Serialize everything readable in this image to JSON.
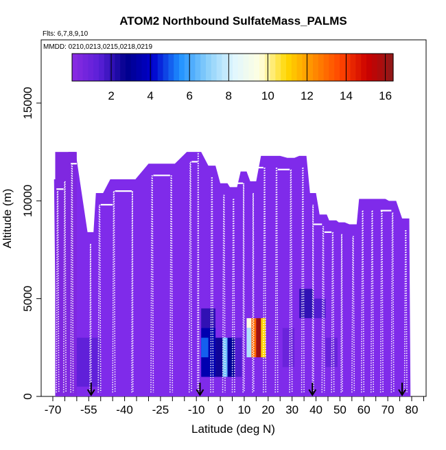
{
  "chart_data": {
    "type": "heatmap",
    "title": "ATOM2 Northbound SulfateMass_PALMS",
    "subtitle_flights": "Flts: 6,7,8,9,10",
    "subtitle_dates": "MMDD: 0210,0213,0215,0218,0219",
    "xlabel": "Latitude (deg N)",
    "ylabel": "Altitude (m)",
    "xlim": [
      -70,
      85
    ],
    "ylim": [
      0,
      17500
    ],
    "x_ticks": [
      -70,
      -55,
      -40,
      -25,
      -10,
      0,
      10,
      20,
      30,
      40,
      50,
      60,
      70,
      80
    ],
    "y_ticks": [
      0,
      5000,
      10000,
      15000
    ],
    "colorbar": {
      "min": 0,
      "max": 16.4,
      "ticks": [
        2,
        4,
        6,
        8,
        10,
        12,
        14,
        16
      ],
      "colors": [
        "#8a2be2",
        "#5a1fd8",
        "#00008b",
        "#0000cd",
        "#1e90ff",
        "#87cefa",
        "#e0f6ff",
        "#ffffe0",
        "#ffd700",
        "#ff8c00",
        "#ff4500",
        "#cc0000",
        "#8b1a1a"
      ]
    },
    "background_color": "#7f2bea",
    "profiles": [
      {
        "lat_start": -68.5,
        "lat_end": -67.5,
        "alt_top": 10500
      },
      {
        "lat_start": -65.5,
        "lat_end": -64.5,
        "alt_top": 11000
      },
      {
        "lat_start": -62.5,
        "lat_end": -61.5,
        "alt_top": 11900
      },
      {
        "lat_start": -54.5,
        "lat_end": -54.0,
        "alt_top": 7800
      },
      {
        "lat_start": -51.0,
        "lat_end": -50.0,
        "alt_top": 9800
      },
      {
        "lat_start": -45.0,
        "lat_end": -44.0,
        "alt_top": 10500
      },
      {
        "lat_start": -37.0,
        "lat_end": -36.5,
        "alt_top": 10500
      },
      {
        "lat_start": -29.0,
        "lat_end": -28.0,
        "alt_top": 11300
      },
      {
        "lat_start": -21.0,
        "lat_end": -20.0,
        "alt_top": 11300
      },
      {
        "lat_start": -13.0,
        "lat_end": -12.0,
        "alt_top": 12000
      },
      {
        "lat_start": -9.5,
        "lat_end": -9.0,
        "alt_top": 12800
      },
      {
        "lat_start": -4.0,
        "lat_end": -3.0,
        "alt_top": 11200
      },
      {
        "lat_start": 1.0,
        "lat_end": 2.0,
        "alt_top": 10300
      },
      {
        "lat_start": 5.0,
        "lat_end": 6.0,
        "alt_top": 10100
      },
      {
        "lat_start": 9.5,
        "lat_end": 10.0,
        "alt_top": 10900
      },
      {
        "lat_start": 13.5,
        "lat_end": 14.0,
        "alt_top": 10400
      },
      {
        "lat_start": 18.0,
        "lat_end": 19.0,
        "alt_top": 11700
      },
      {
        "lat_start": 23.0,
        "lat_end": 24.0,
        "alt_top": 11700
      },
      {
        "lat_start": 29.0,
        "lat_end": 30.0,
        "alt_top": 11600
      },
      {
        "lat_start": 34.0,
        "lat_end": 35.0,
        "alt_top": 11700
      },
      {
        "lat_start": 38.5,
        "lat_end": 39.0,
        "alt_top": 9800
      },
      {
        "lat_start": 42.5,
        "lat_end": 43.5,
        "alt_top": 8700
      },
      {
        "lat_start": 46.5,
        "lat_end": 47.5,
        "alt_top": 8400
      },
      {
        "lat_start": 50.5,
        "lat_end": 51.0,
        "alt_top": 8300
      },
      {
        "lat_start": 55.0,
        "lat_end": 56.0,
        "alt_top": 8200
      },
      {
        "lat_start": 59.0,
        "lat_end": 60.0,
        "alt_top": 9500
      },
      {
        "lat_start": 63.0,
        "lat_end": 64.0,
        "alt_top": 9500
      },
      {
        "lat_start": 67.0,
        "lat_end": 68.0,
        "alt_top": 9500
      },
      {
        "lat_start": 71.5,
        "lat_end": 72.5,
        "alt_top": 9400
      },
      {
        "lat_start": 77.0,
        "lat_end": 78.0,
        "alt_top": 8500
      }
    ],
    "level_segments": [
      {
        "lat_start": -68.5,
        "lat_end": -65.5,
        "alt": 10600
      },
      {
        "lat_start": -62.5,
        "lat_end": -60.0,
        "alt": 11900
      },
      {
        "lat_start": -50.0,
        "lat_end": -45.0,
        "alt": 9800
      },
      {
        "lat_start": -44.0,
        "lat_end": -37.0,
        "alt": 10500
      },
      {
        "lat_start": -28.0,
        "lat_end": -21.0,
        "alt": 11300
      },
      {
        "lat_start": -12.0,
        "lat_end": -9.5,
        "alt": 12000
      },
      {
        "lat_start": 5.0,
        "lat_end": 9.5,
        "alt": 10900
      },
      {
        "lat_start": 14.0,
        "lat_end": 18.0,
        "alt": 11700
      },
      {
        "lat_start": 24.0,
        "lat_end": 29.0,
        "alt": 11600
      },
      {
        "lat_start": 39.0,
        "lat_end": 42.5,
        "alt": 8800
      },
      {
        "lat_start": 43.5,
        "lat_end": 46.5,
        "alt": 8400
      },
      {
        "lat_start": 67.0,
        "lat_end": 71.5,
        "alt": 9500
      }
    ],
    "cells": [
      {
        "lat_start": -69,
        "lat_end": -60,
        "alt_start": 0,
        "alt_end": 12500,
        "value": 0.3
      },
      {
        "lat_start": -60,
        "lat_end": -50,
        "alt_start": 500,
        "alt_end": 3000,
        "value": 1.2
      },
      {
        "lat_start": -8,
        "lat_end": -2,
        "alt_start": 3500,
        "alt_end": 4500,
        "value": 2.0
      },
      {
        "lat_start": -8,
        "lat_end": -2,
        "alt_start": 1000,
        "alt_end": 3500,
        "value": 3.5
      },
      {
        "lat_start": -8,
        "lat_end": -5,
        "alt_start": 2000,
        "alt_end": 3000,
        "value": 5.0
      },
      {
        "lat_start": -2,
        "lat_end": 1,
        "alt_start": 1000,
        "alt_end": 3000,
        "value": 2.5
      },
      {
        "lat_start": 1,
        "lat_end": 3,
        "alt_start": 1000,
        "alt_end": 3000,
        "value": 6.5
      },
      {
        "lat_start": 3,
        "lat_end": 6,
        "alt_start": 1000,
        "alt_end": 3000,
        "value": 3.0
      },
      {
        "lat_start": 6,
        "lat_end": 9,
        "alt_start": 1000,
        "alt_end": 3000,
        "value": 1.5
      },
      {
        "lat_start": 11,
        "lat_end": 13,
        "alt_start": 3500,
        "alt_end": 4000,
        "value": 9.5
      },
      {
        "lat_start": 13,
        "lat_end": 15,
        "alt_start": 2000,
        "alt_end": 4000,
        "value": 13.0
      },
      {
        "lat_start": 15,
        "lat_end": 17,
        "alt_start": 2000,
        "alt_end": 4000,
        "value": 16.0
      },
      {
        "lat_start": 17,
        "lat_end": 19,
        "alt_start": 2000,
        "alt_end": 4000,
        "value": 11.0
      },
      {
        "lat_start": 11,
        "lat_end": 13,
        "alt_start": 2000,
        "alt_end": 3500,
        "value": 7.5
      },
      {
        "lat_start": 33,
        "lat_end": 39,
        "alt_start": 4000,
        "alt_end": 5500,
        "value": 2.0
      },
      {
        "lat_start": 39,
        "lat_end": 44,
        "alt_start": 4000,
        "alt_end": 5000,
        "value": 1.5
      },
      {
        "lat_start": 44,
        "lat_end": 49,
        "alt_start": 1500,
        "alt_end": 3000,
        "value": 1.0
      },
      {
        "lat_start": 26,
        "lat_end": 31,
        "alt_start": 1500,
        "alt_end": 3500,
        "value": 0.9
      }
    ],
    "arrows_lat": [
      -54,
      -8.5,
      38.5,
      76
    ]
  }
}
